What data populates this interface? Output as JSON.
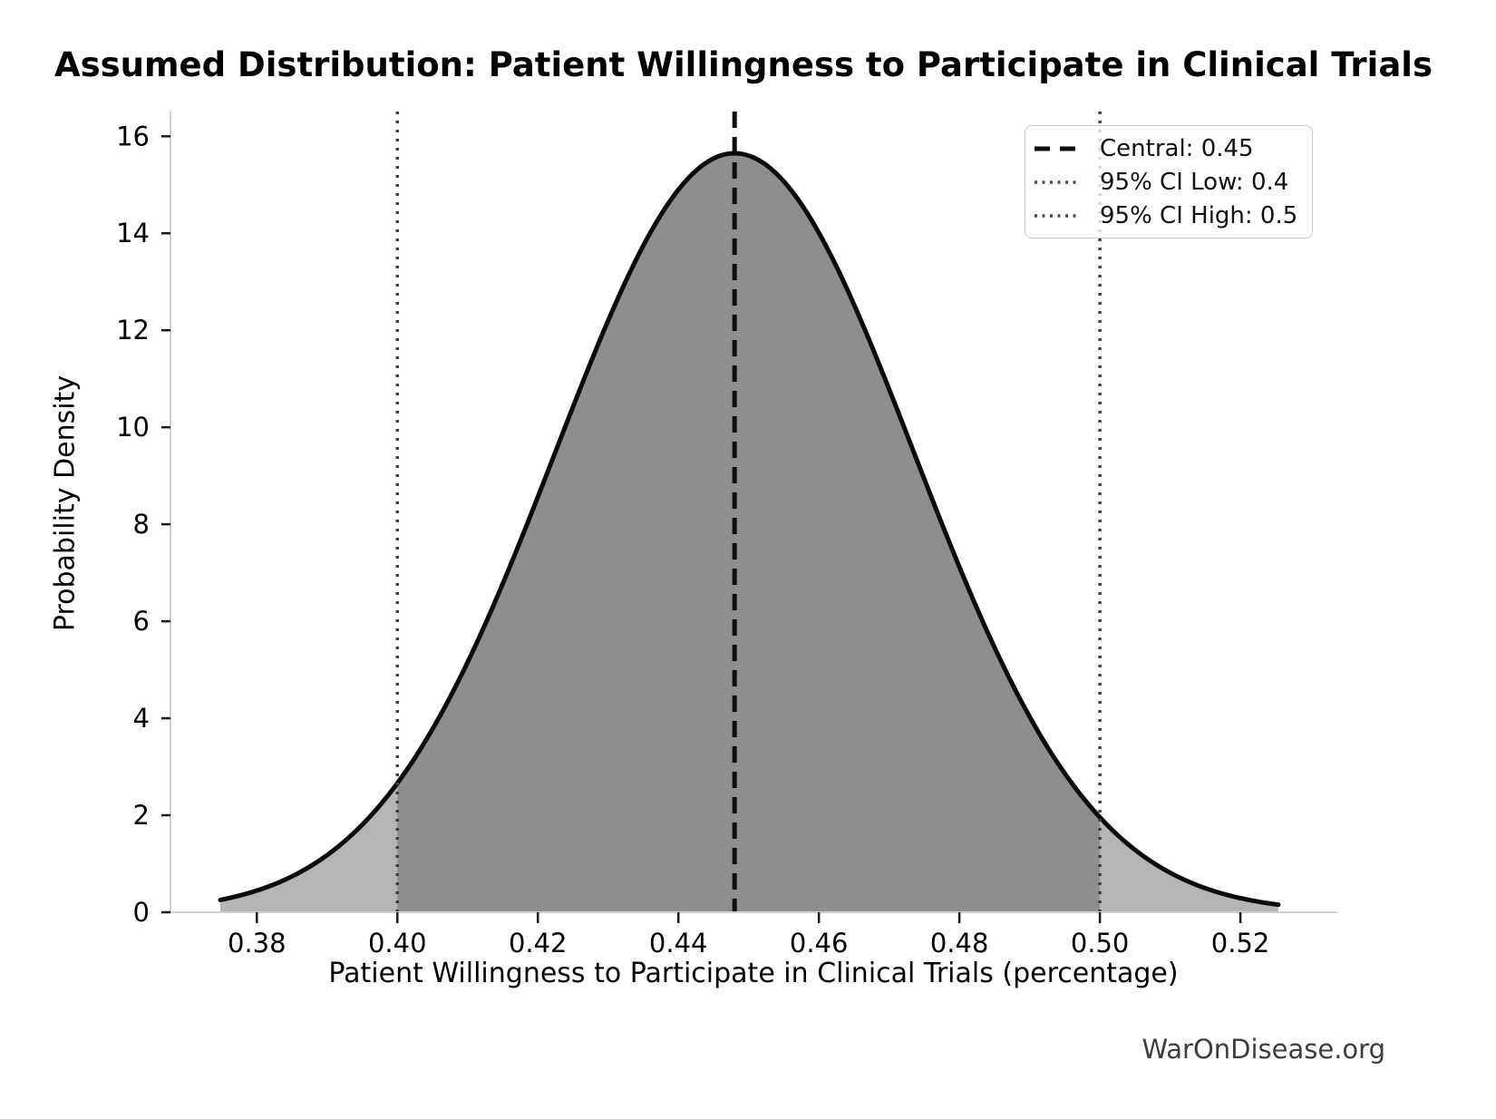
{
  "page": {
    "watermark": "WarOnDisease.org",
    "background": "#ffffff"
  },
  "chart_data": {
    "type": "area",
    "title": "Assumed Distribution: Patient Willingness to Participate in Clinical Trials",
    "xlabel": "Patient Willingness to Participate in Clinical Trials (percentage)",
    "ylabel": "Probability Density",
    "grid": false,
    "legend_position": "upper right",
    "xlim": [
      0.3677,
      0.5338
    ],
    "ylim": [
      0,
      16.51
    ],
    "x_ticks": [
      "0.38",
      "0.40",
      "0.42",
      "0.44",
      "0.46",
      "0.48",
      "0.50",
      "0.52"
    ],
    "y_ticks": [
      0,
      2,
      4,
      6,
      8,
      10,
      12,
      14,
      16
    ],
    "curve": {
      "distribution": "normal",
      "peak_x": 0.448,
      "sigma": 0.0255,
      "peak_density": 15.65,
      "x_start": 0.3748,
      "x_end": 0.5254
    },
    "central": {
      "value": 0.45,
      "line_x": 0.448,
      "style": "dashed"
    },
    "ci_low": {
      "value": 0.4,
      "line_x": 0.4,
      "style": "dotted"
    },
    "ci_high": {
      "value": 0.5,
      "line_x": 0.5,
      "style": "dotted"
    },
    "legend": {
      "items": [
        {
          "label": "Central: 0.45",
          "style": "dashed"
        },
        {
          "label": "95% CI Low: 0.4",
          "style": "dotted"
        },
        {
          "label": "95% CI High: 0.5",
          "style": "dotted"
        }
      ]
    },
    "colors": {
      "curve": "#0b0b0b",
      "fill_inner": "#8e8e8e",
      "fill_outer": "#b5b5b5",
      "central_line": "#0d0d0d",
      "ci_line": "#3f3f3f",
      "spine": "#d0d0d0",
      "tick": "#1a1a1a",
      "tick_text": "#000000",
      "watermark": "#3d3d3d"
    }
  }
}
